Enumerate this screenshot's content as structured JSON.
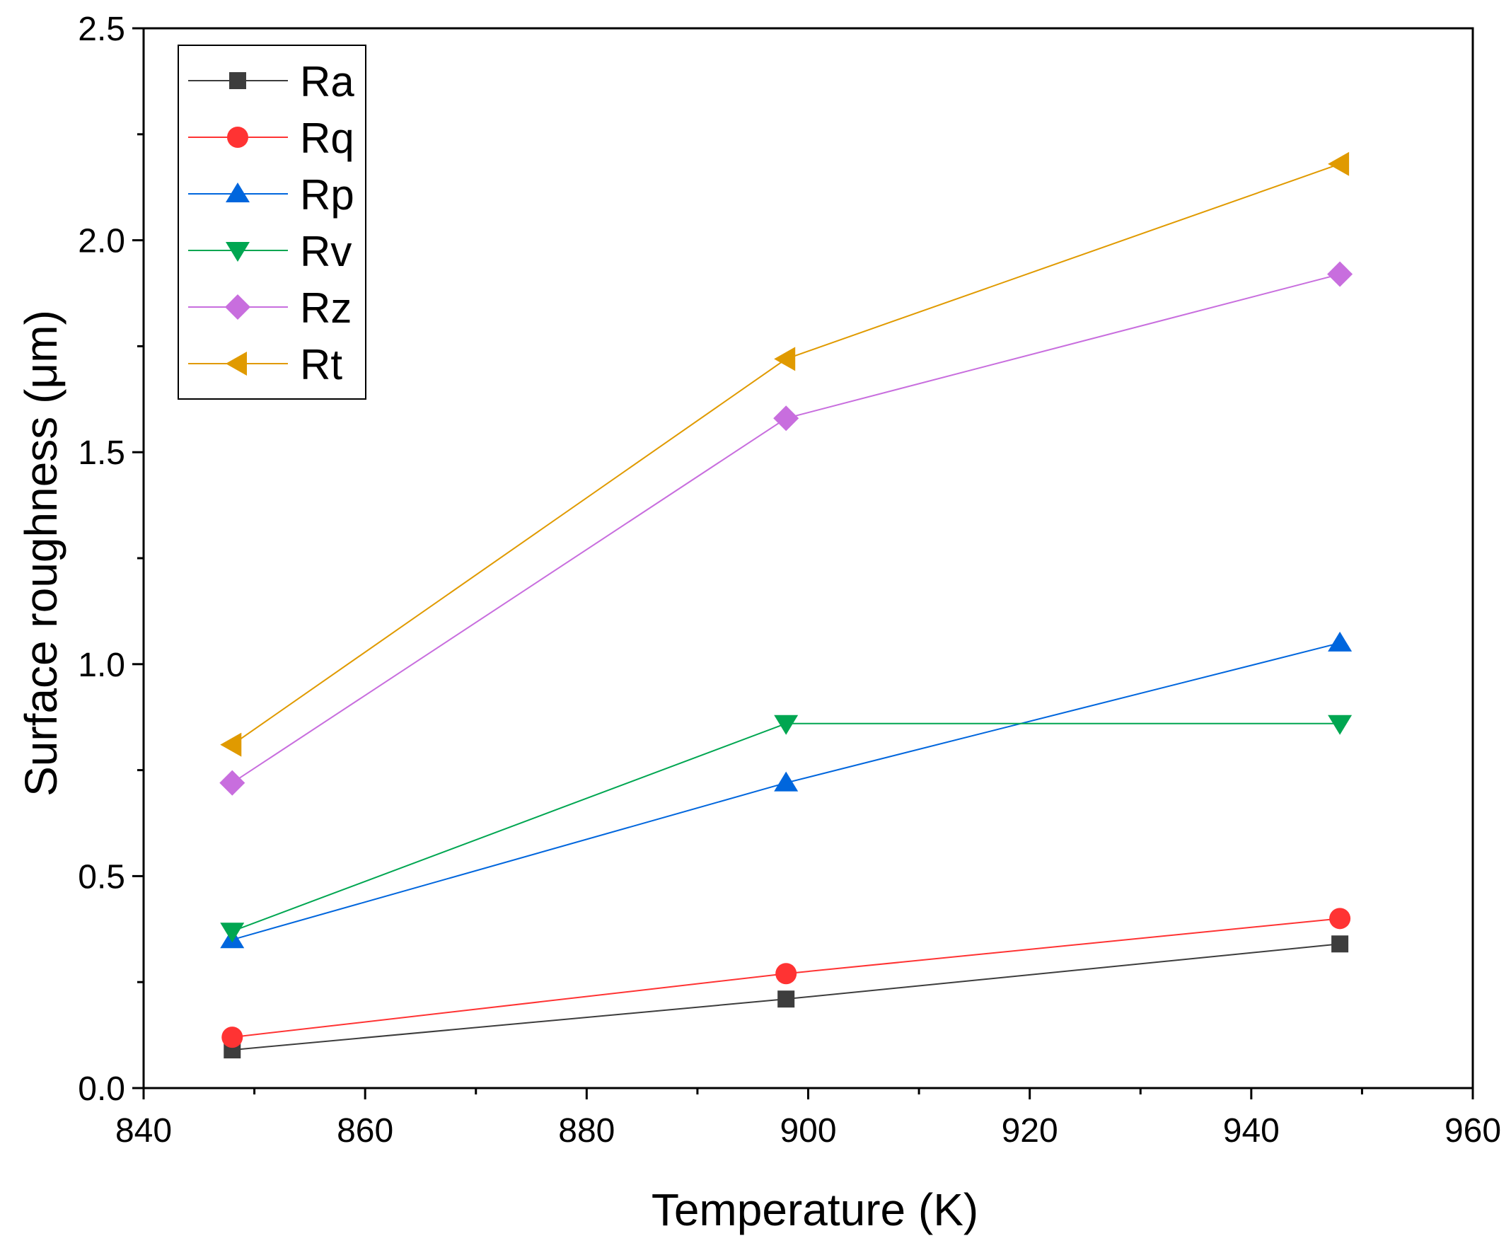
{
  "chart_data": {
    "type": "line",
    "title": "",
    "xlabel": "Temperature (K)",
    "ylabel": "Surface roughness (μm)",
    "xlim": [
      840,
      960
    ],
    "ylim": [
      0,
      2.5
    ],
    "xticks": [
      840,
      860,
      880,
      900,
      920,
      940,
      960
    ],
    "xtick_labels": [
      "840",
      "860",
      "880",
      "900",
      "920",
      "940",
      "960"
    ],
    "yticks": [
      0,
      0.5,
      1.0,
      1.5,
      2.0,
      2.5
    ],
    "ytick_labels": [
      "0.0",
      "0.5",
      "1.0",
      "1.5",
      "2.0",
      "2.5"
    ],
    "x": [
      848,
      898,
      948
    ],
    "legend_position": "top-left",
    "grid": false,
    "series": [
      {
        "name": "Ra",
        "values": [
          0.09,
          0.21,
          0.34
        ],
        "color": "#3d3d3d",
        "marker": "square"
      },
      {
        "name": "Rq",
        "values": [
          0.12,
          0.27,
          0.4
        ],
        "color": "#ff3333",
        "marker": "circle"
      },
      {
        "name": "Rp",
        "values": [
          0.35,
          0.72,
          1.05
        ],
        "color": "#0066dd",
        "marker": "triangle-up"
      },
      {
        "name": "Rv",
        "values": [
          0.37,
          0.86,
          0.86
        ],
        "color": "#00a651",
        "marker": "triangle-down"
      },
      {
        "name": "Rz",
        "values": [
          0.72,
          1.58,
          1.92
        ],
        "color": "#c86ede",
        "marker": "diamond"
      },
      {
        "name": "Rt",
        "values": [
          0.81,
          1.72,
          2.18
        ],
        "color": "#e09a00",
        "marker": "triangle-left"
      }
    ]
  }
}
